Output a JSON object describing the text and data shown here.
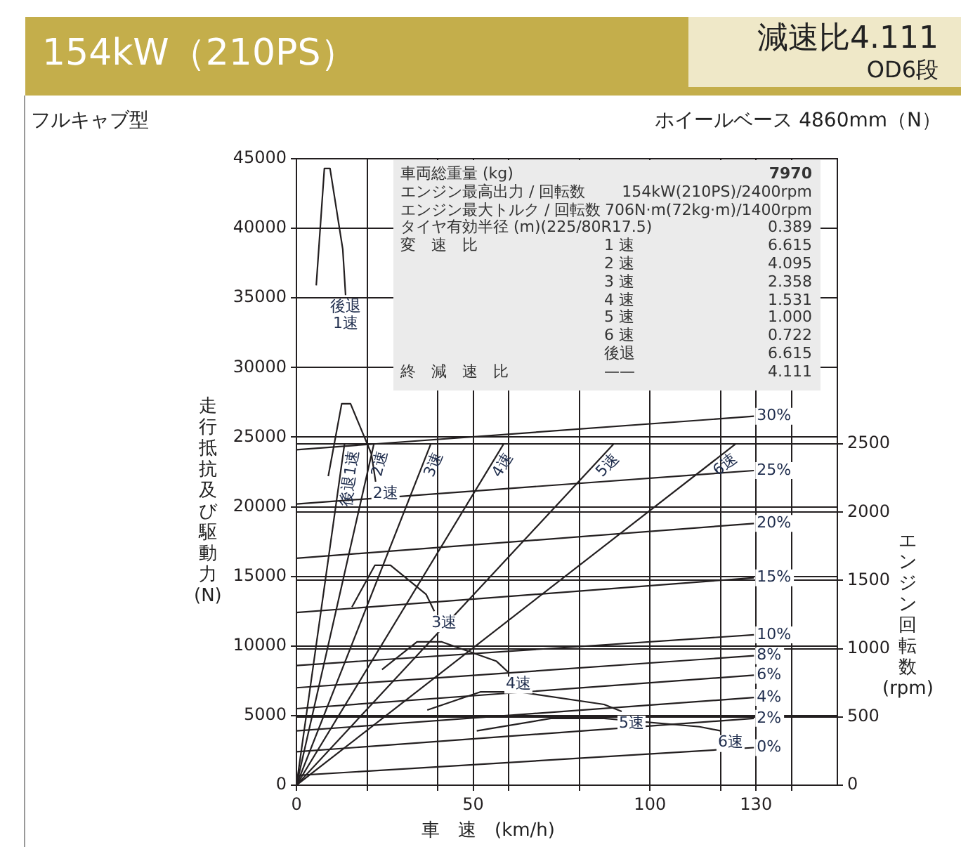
{
  "chart_data": {
    "type": "line",
    "title": "154kW（210PS）",
    "xlabel": "車　速　(km/h)",
    "ylabel": "走行抵抗及び駆動力(N)",
    "y2label": "エンジン回転数(rpm)",
    "annotations": [
      "減速比4.111",
      "OD6段",
      "フルキャブ型",
      "ホイールベース 4860mm（N）",
      "車両総重量 (kg)",
      "7970",
      "エンジン最高出力 / 回転数",
      "154kW(210PS)/2400rpm",
      "エンジン最大トルク / 回転数",
      "706N·m(72kg·m)/1400rpm",
      "タイヤ有効半径 (m)(225/80R17.5)",
      "0.389",
      "変　速　比",
      "1 速",
      "6.615",
      "2 速",
      "4.095",
      "3 速",
      "2.358",
      "4 速",
      "1.531",
      "5 速",
      "1.000",
      "6 速",
      "0.722",
      "後退",
      "6.615",
      "終　減　速　比",
      "——",
      "4.111"
    ],
    "xlim": [
      0,
      153
    ],
    "xticks": [
      0,
      {
        "value": 20,
        "label": null
      },
      {
        "value": 40,
        "label": null
      },
      50,
      {
        "value": 60,
        "label": null
      },
      {
        "value": 80,
        "label": null
      },
      100,
      {
        "value": 120,
        "label": null
      },
      130,
      {
        "value": 140,
        "label": null
      }
    ],
    "ylim": [
      0,
      45000
    ],
    "yticks": [
      0,
      5000,
      10000,
      15000,
      20000,
      25000,
      30000,
      35000,
      40000,
      45000
    ],
    "y2lim": [
      0,
      4590
    ],
    "y2ticks": [
      0,
      500,
      1000,
      1500,
      2000,
      2500
    ],
    "grid": true,
    "legend": false,
    "marker": "none",
    "line_style": "solid",
    "series": [
      {
        "name": "30%",
        "color": "#231f20",
        "x": [
          0,
          129.4
        ],
        "values": [
          24100,
          26500
        ]
      },
      {
        "name": "25%",
        "color": "#231f20",
        "x": [
          0,
          129.4
        ],
        "values": [
          20200,
          22600
        ]
      },
      {
        "name": "20%",
        "color": "#231f20",
        "x": [
          0,
          129.4
        ],
        "values": [
          16300,
          18800
        ]
      },
      {
        "name": "15%",
        "color": "#231f20",
        "x": [
          0,
          129.4
        ],
        "values": [
          12400,
          14900
        ]
      },
      {
        "name": "10%",
        "color": "#231f20",
        "x": [
          0,
          129.4
        ],
        "values": [
          8600,
          10800
        ]
      },
      {
        "name": "8%",
        "color": "#231f20",
        "x": [
          0,
          129.4
        ],
        "values": [
          7000,
          9300
        ]
      },
      {
        "name": "6%",
        "color": "#231f20",
        "x": [
          0,
          129.4
        ],
        "values": [
          5500,
          7900
        ]
      },
      {
        "name": "4%",
        "color": "#231f20",
        "x": [
          0,
          129.4
        ],
        "values": [
          3900,
          6300
        ]
      },
      {
        "name": "2%",
        "color": "#231f20",
        "x": [
          0,
          129.4
        ],
        "values": [
          2400,
          4800
        ]
      },
      {
        "name": "0%",
        "color": "#231f20",
        "x": [
          0,
          129.4
        ],
        "values": [
          700,
          2700
        ]
      },
      {
        "name": "後退 1速",
        "color": "#231f20",
        "x": [
          5.6,
          7.9,
          9.5,
          13.1,
          13.9
        ],
        "values": [
          35900,
          44300,
          44300,
          38500,
          35200
        ]
      },
      {
        "name": "2速",
        "color": "#231f20",
        "x": [
          9.0,
          12.8,
          15.3,
          21.2,
          22.4
        ],
        "values": [
          22200,
          27400,
          27400,
          23800,
          21800
        ]
      },
      {
        "name": "3速",
        "color": "#231f20",
        "x": [
          15.7,
          22.2,
          26.6,
          36.7,
          39.0
        ],
        "values": [
          12800,
          15800,
          15800,
          13700,
          12500
        ]
      },
      {
        "name": "4速",
        "color": "#231f20",
        "x": [
          24.2,
          34.1,
          41.0,
          56.6,
          60.0
        ],
        "values": [
          8300,
          10300,
          10300,
          8900,
          8100
        ]
      },
      {
        "name": "5速",
        "color": "#231f20",
        "x": [
          37,
          52,
          63,
          87,
          92
        ],
        "values": [
          5400,
          6700,
          6700,
          5800,
          5300
        ]
      },
      {
        "name": "6速",
        "color": "#231f20",
        "x": [
          51,
          72,
          87,
          114,
          120
        ],
        "values": [
          3900,
          4800,
          4800,
          4200,
          3900
        ]
      },
      {
        "name": "後退1速",
        "color": "#231f20",
        "axis": "y2",
        "x": [
          0,
          13.6
        ],
        "values": [
          0,
          2500
        ]
      },
      {
        "name": "2速",
        "color": "#231f20",
        "axis": "y2",
        "x": [
          0,
          21.9
        ],
        "values": [
          0,
          2500
        ]
      },
      {
        "name": "3速",
        "color": "#231f20",
        "axis": "y2",
        "x": [
          0,
          38.0
        ],
        "values": [
          0,
          2500
        ]
      },
      {
        "name": "4速",
        "color": "#231f20",
        "axis": "y2",
        "x": [
          0,
          58.6
        ],
        "values": [
          0,
          2500
        ]
      },
      {
        "name": "5速",
        "color": "#231f20",
        "axis": "y2",
        "x": [
          0,
          89.7
        ],
        "values": [
          0,
          2500
        ]
      },
      {
        "name": "6速",
        "color": "#231f20",
        "axis": "y2",
        "x": [
          0,
          124.2
        ],
        "values": [
          0,
          2500
        ]
      }
    ]
  }
}
